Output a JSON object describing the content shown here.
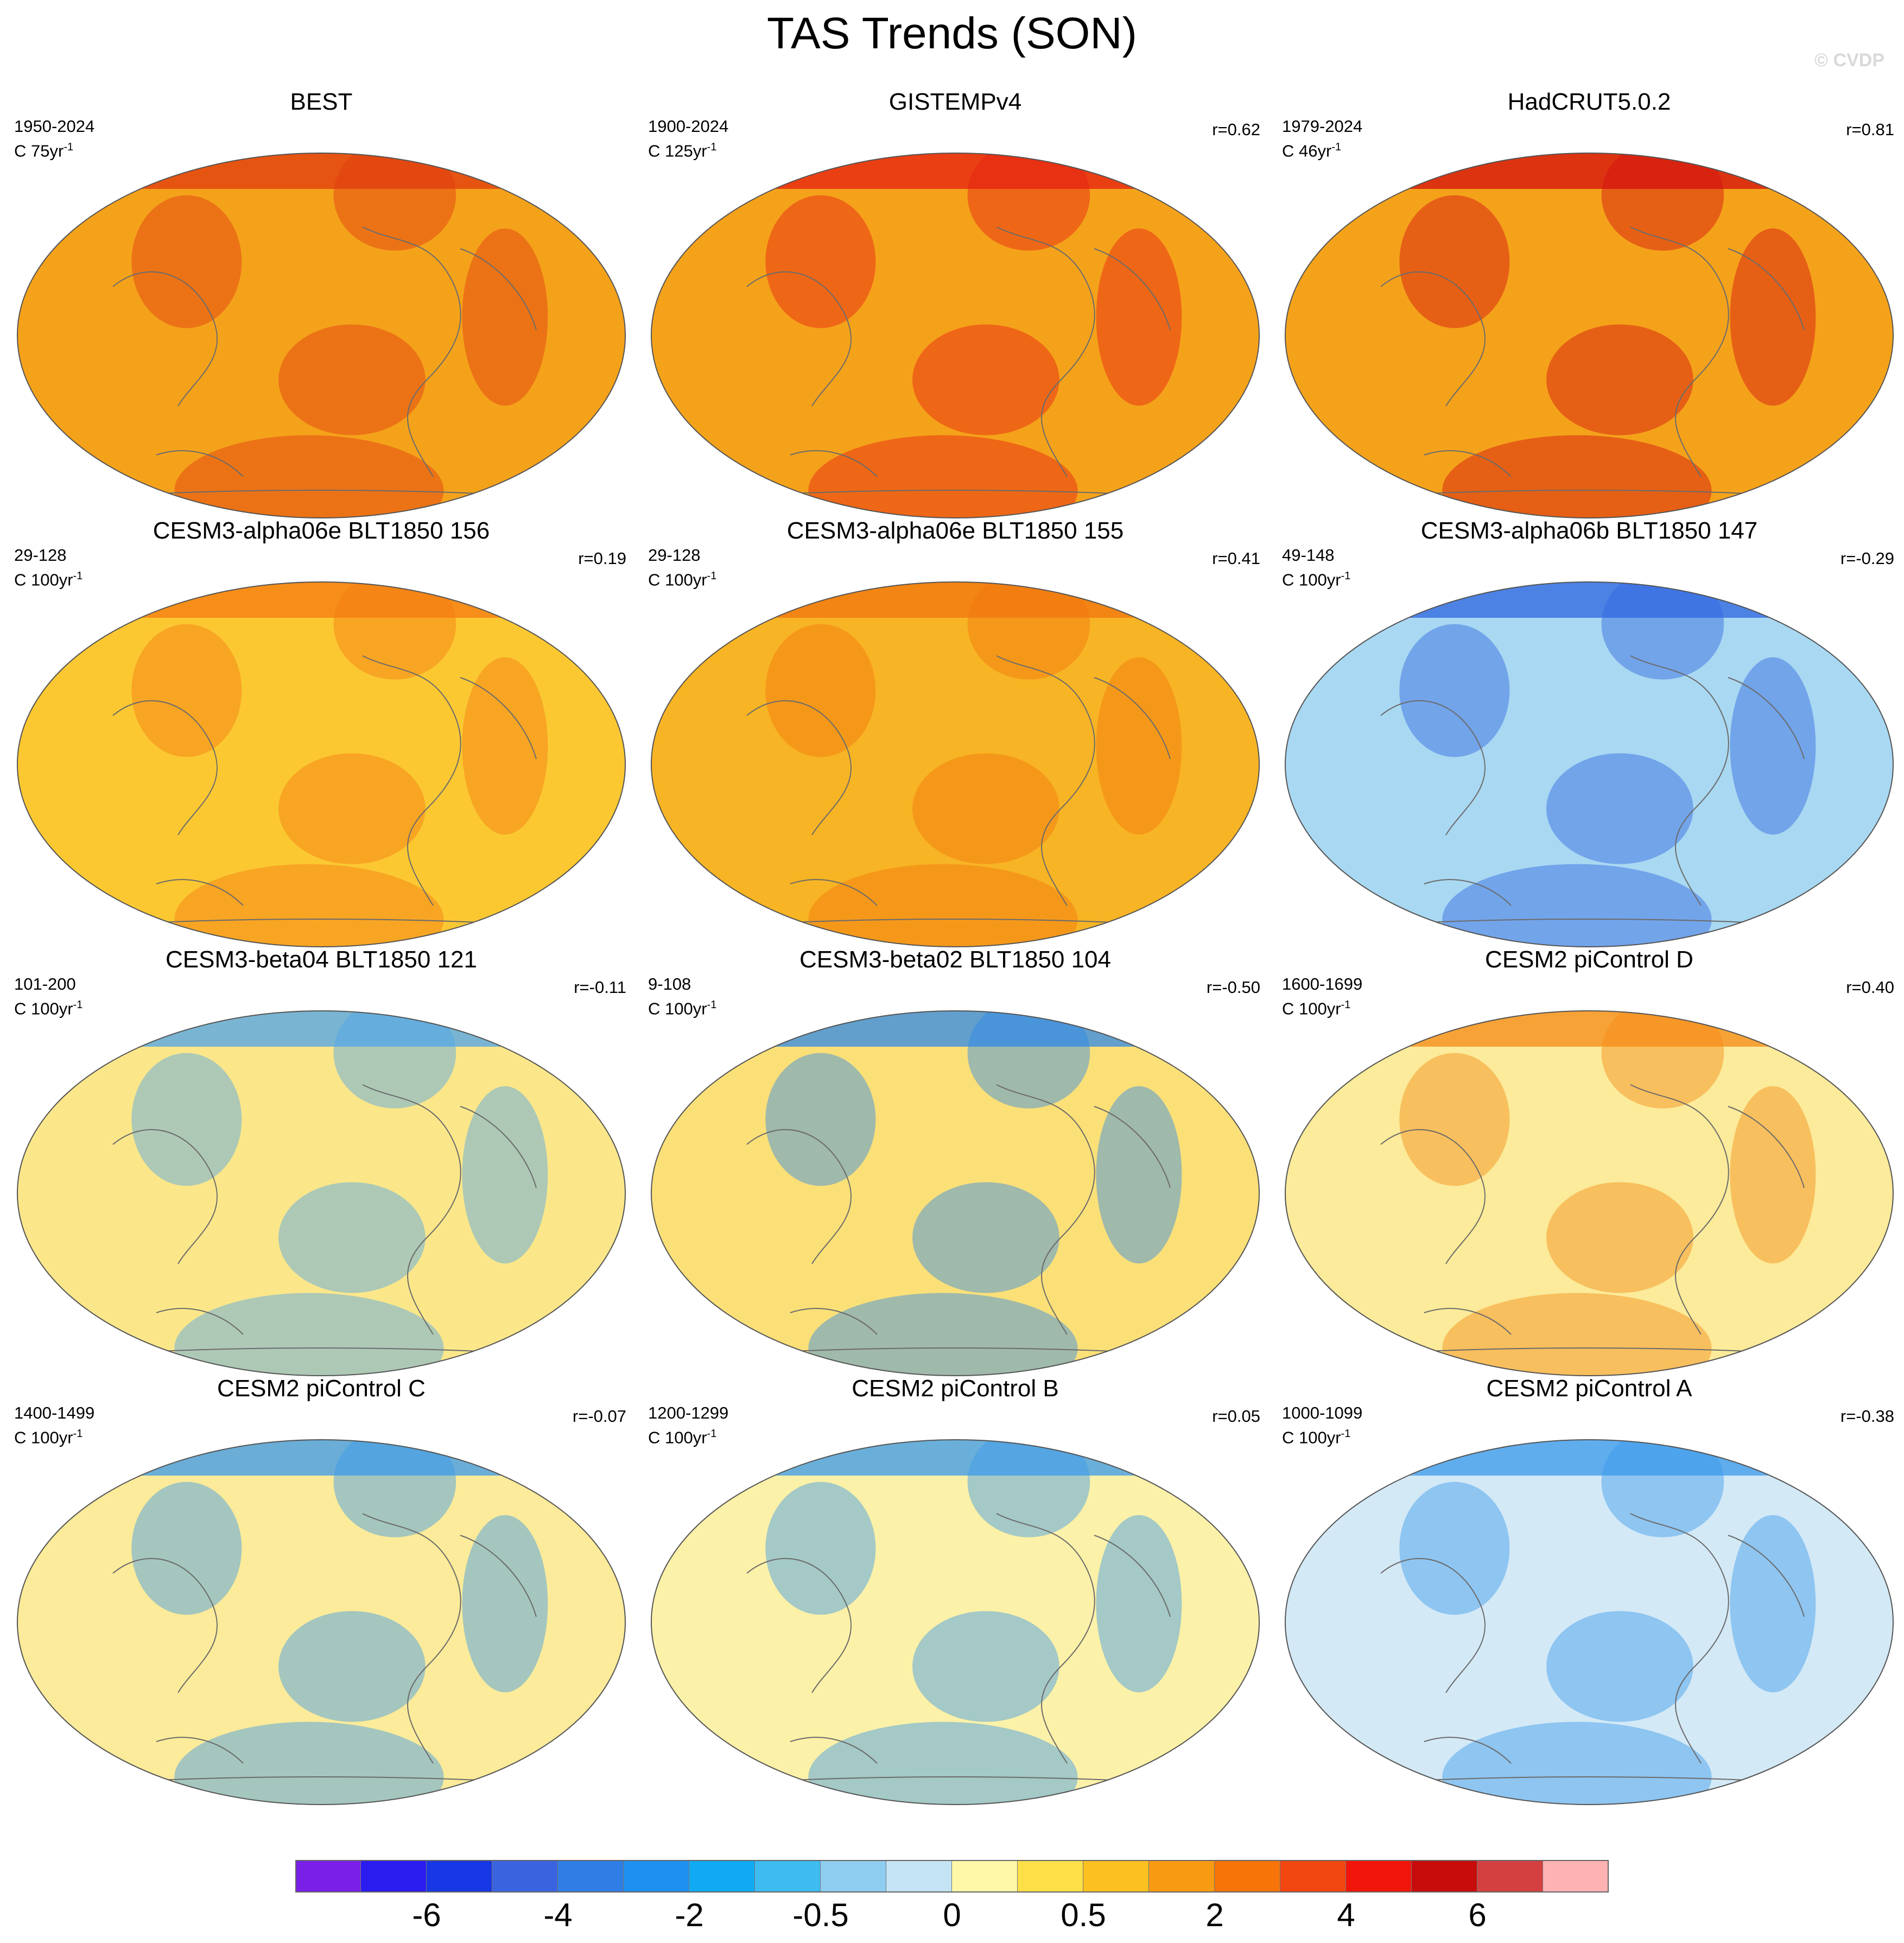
{
  "title": "TAS Trends (SON)",
  "credit": "© CVDP",
  "panels": [
    {
      "title": "BEST",
      "period": "1950-2024",
      "units_prefix": "C 75yr",
      "units_exp": "-1",
      "corr": "",
      "base": "#f5a21b",
      "accent": "#e03a10"
    },
    {
      "title": "GISTEMPv4",
      "period": "1900-2024",
      "units_prefix": "C 125yr",
      "units_exp": "-1",
      "corr": "r=0.62",
      "base": "#f5a21b",
      "accent": "#e61e12"
    },
    {
      "title": "HadCRUT5.0.2",
      "period": "1979-2024",
      "units_prefix": "C 46yr",
      "units_exp": "-1",
      "corr": "r=0.81",
      "base": "#f5a21b",
      "accent": "#d30f0f"
    },
    {
      "title": "CESM3-alpha06e BLT1850 156",
      "period": "29-128",
      "units_prefix": "C 100yr",
      "units_exp": "-1",
      "corr": "r=0.19",
      "base": "#fbc832",
      "accent": "#f47b12"
    },
    {
      "title": "CESM3-alpha06e BLT1850 155",
      "period": "29-128",
      "units_prefix": "C 100yr",
      "units_exp": "-1",
      "corr": "r=0.41",
      "base": "#f7b424",
      "accent": "#f2760f"
    },
    {
      "title": "CESM3-alpha06b BLT1850 147",
      "period": "49-148",
      "units_prefix": "C 100yr",
      "units_exp": "-1",
      "corr": "r=-0.29",
      "base": "#a9d8f2",
      "accent": "#2f66e0"
    },
    {
      "title": "CESM3-beta04 BLT1850 121",
      "period": "101-200",
      "units_prefix": "C 100yr",
      "units_exp": "-1",
      "corr": "r=-0.11",
      "base": "#fbe78a",
      "accent": "#4ea4ea"
    },
    {
      "title": "CESM3-beta02 BLT1850 104",
      "period": "9-108",
      "units_prefix": "C 100yr",
      "units_exp": "-1",
      "corr": "r=-0.50",
      "base": "#fbe078",
      "accent": "#2f8ae8"
    },
    {
      "title": "CESM2 piControl D",
      "period": "1600-1699",
      "units_prefix": "C 100yr",
      "units_exp": "-1",
      "corr": "r=0.40",
      "base": "#fbeb9a",
      "accent": "#f58a16"
    },
    {
      "title": "CESM2 piControl C",
      "period": "1400-1499",
      "units_prefix": "C 100yr",
      "units_exp": "-1",
      "corr": "r=-0.07",
      "base": "#fbeb9a",
      "accent": "#3a98ea"
    },
    {
      "title": "CESM2 piControl B",
      "period": "1200-1299",
      "units_prefix": "C 100yr",
      "units_exp": "-1",
      "corr": "r=0.05",
      "base": "#fcf1a8",
      "accent": "#3a98ea"
    },
    {
      "title": "CESM2 piControl A",
      "period": "1000-1099",
      "units_prefix": "C 100yr",
      "units_exp": "-1",
      "corr": "r=-0.38",
      "base": "#d3e9f6",
      "accent": "#3a98ea"
    }
  ],
  "colorbar": {
    "colors": [
      "#7a1fe8",
      "#2b1cf0",
      "#1637e3",
      "#3a64df",
      "#2f7ee6",
      "#1e90f0",
      "#10aaf2",
      "#3cbcf0",
      "#8fcdf0",
      "#c4e4f6",
      "#fef8a8",
      "#fddf47",
      "#fcc020",
      "#f89a12",
      "#f67408",
      "#f24611",
      "#f21509",
      "#c80b0b",
      "#d44040",
      "#ffb2b2"
    ],
    "labels": [
      {
        "text": "-6",
        "boundary": 2
      },
      {
        "text": "-4",
        "boundary": 4
      },
      {
        "text": "-2",
        "boundary": 6
      },
      {
        "text": "-0.5",
        "boundary": 8
      },
      {
        "text": "0",
        "boundary": 10
      },
      {
        "text": "0.5",
        "boundary": 12
      },
      {
        "text": "2",
        "boundary": 14
      },
      {
        "text": "4",
        "boundary": 16
      },
      {
        "text": "6",
        "boundary": 18
      }
    ]
  }
}
